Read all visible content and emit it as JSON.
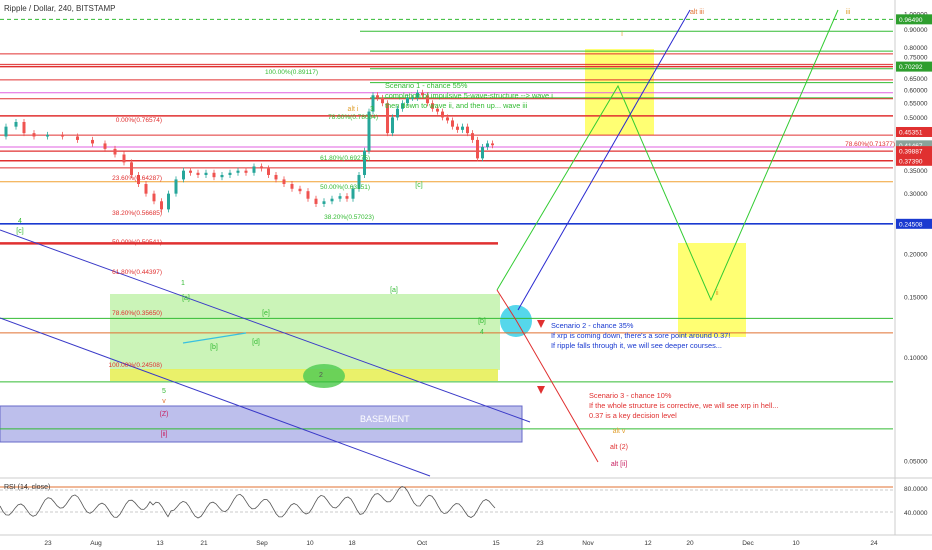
{
  "header": {
    "title": "Ripple / Dollar, 240, BITSTAMP"
  },
  "chart_data": {
    "type": "candlestick",
    "title": "Ripple / Dollar, 240, BITSTAMP",
    "ylim": [
      0.03,
      1.05
    ],
    "log_scale": true,
    "grid": false,
    "x_ticks": [
      "23",
      "Aug",
      "13",
      "21",
      "Sep",
      "10",
      "18",
      "Oct",
      "15",
      "23",
      "Nov",
      "12",
      "20",
      "Dec",
      "10",
      "24"
    ],
    "price_scale_ticks": [
      1.0,
      0.9,
      0.8,
      0.75,
      0.7,
      0.65,
      0.6,
      0.55,
      0.5,
      0.45,
      0.4,
      0.35,
      0.3,
      0.25,
      0.2,
      0.15,
      0.1,
      0.05
    ],
    "price_scale_labels": [
      "1.00000",
      "0.90000",
      "0.80000",
      "0.75000",
      "0.70000",
      "0.65000",
      "0.60000",
      "0.55000",
      "0.50000",
      "0.45000",
      "0.40000",
      "0.35000",
      "0.30000",
      "0.25000",
      "0.20000",
      "0.15000",
      "0.10000",
      "0.05000"
    ],
    "price_badges": [
      {
        "value": 0.9649,
        "label": "0.96490",
        "color": "#2e9e2e"
      },
      {
        "value": 0.70292,
        "label": "0.70292",
        "color": "#2e9e2e"
      },
      {
        "value": 0.45351,
        "label": "0.45351",
        "color": "#e03030"
      },
      {
        "value": 0.41467,
        "label": "0.41467",
        "color": "#8aa39a"
      },
      {
        "value": 0.4,
        "label": "01:48:31",
        "color": "#8aa39a"
      },
      {
        "value": 0.39887,
        "label": "0.39887",
        "color": "#e03030"
      },
      {
        "value": 0.3739,
        "label": "0.37390",
        "color": "#e03030"
      },
      {
        "value": 0.24508,
        "label": "0.24508",
        "color": "#1a3ad0"
      }
    ],
    "fib_levels": [
      {
        "label": "100.00%(0.89117)",
        "value": 0.89117,
        "color": "#33bb33"
      },
      {
        "label": "0.00%(0.76574)",
        "value": 0.76574,
        "color": "#e03030"
      },
      {
        "label": "78.60%(0.78004)",
        "value": 0.78004,
        "color": "#33bb33"
      },
      {
        "label": "61.80%(0.69275)",
        "value": 0.69275,
        "color": "#33bb33"
      },
      {
        "label": "23.60%(0.64287)",
        "value": 0.64287,
        "color": "#e03030"
      },
      {
        "label": "50.00%(0.63151)",
        "value": 0.63151,
        "color": "#33bb33"
      },
      {
        "label": "38.20%(0.56685)",
        "value": 0.56685,
        "color": "#e03030"
      },
      {
        "label": "38.20%(0.57023)",
        "value": 0.57023,
        "color": "#33bb33"
      },
      {
        "label": "50.00%(0.50541)",
        "value": 0.50541,
        "color": "#e03030"
      },
      {
        "label": "61.80%(0.44397)",
        "value": 0.44397,
        "color": "#e03030"
      },
      {
        "label": "78.60%(0.35650)",
        "value": 0.3565,
        "color": "#e03030"
      },
      {
        "label": "100.00%(0.24508)",
        "value": 0.24508,
        "color": "#e03030"
      },
      {
        "label": "78.60%(0.71377)",
        "value": 0.71377,
        "color": "#e03030"
      }
    ],
    "annotations": [
      {
        "text": "Scenario 1 - chance 55%",
        "color": "#33bb33"
      },
      {
        "text": "completion of impulsive 5-wave-structure --> wave i",
        "color": "#33bb33"
      },
      {
        "text": "then down to wave ii, and then up... wave iii",
        "color": "#33bb33"
      },
      {
        "text": "Scenario 2 - chance 35%",
        "color": "#1a3ad0"
      },
      {
        "text": "If xrp is coming down, there's a sore point around 0.37!",
        "color": "#1a3ad0"
      },
      {
        "text": "If ripple falls through it, we will see deeper courses...",
        "color": "#1a3ad0"
      },
      {
        "text": "Scenario 3 - chance 10%",
        "color": "#e03030"
      },
      {
        "text": "If the whole structure is corrective, we will see xrp in hell...",
        "color": "#e03030"
      },
      {
        "text": "0.37 is a key decision level",
        "color": "#e03030"
      },
      {
        "text": "BASEMENT",
        "color": "#ffffff"
      }
    ],
    "wave_labels": [
      "4",
      "[c]",
      "1",
      "[a]",
      "[b]",
      "[d]",
      "[e]",
      "3",
      "[c]",
      "[a]",
      "[b]",
      "4",
      "5",
      "v",
      "(Z)",
      "[ii]",
      "alt i",
      "i",
      "ii",
      "alt iii",
      "iii",
      "alt v",
      "alt (2)",
      "alt [ii]",
      "2"
    ],
    "indicator": {
      "name": "RSI (14, close)",
      "ticks": [
        "80.0000",
        "40.0000"
      ]
    }
  }
}
